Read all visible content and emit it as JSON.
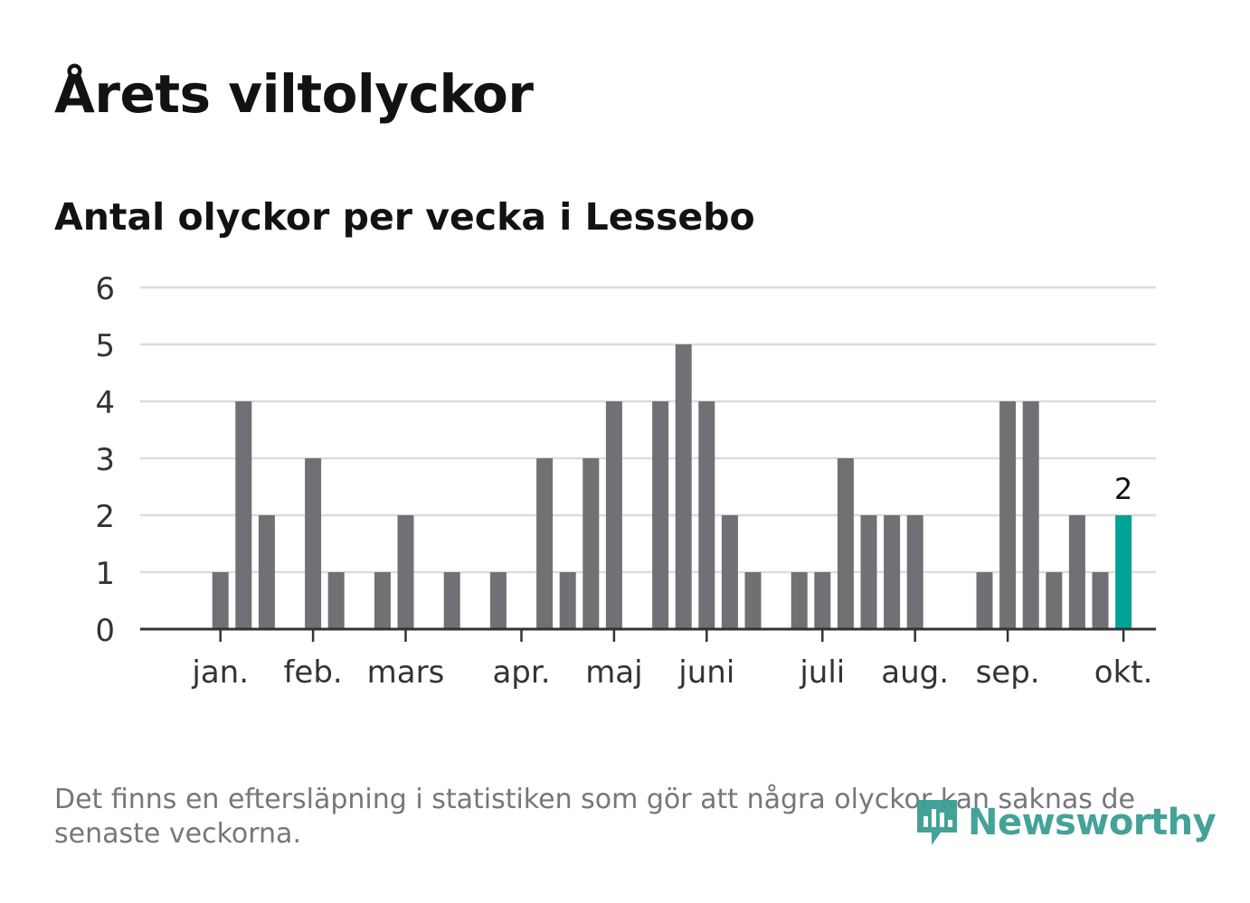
{
  "header": {
    "title": "Årets viltolyckor",
    "subtitle": "Antal olyckor per vecka i Lessebo"
  },
  "footnote": "Det finns en eftersläpning i statistiken som gör att några olyckor kan saknas de senaste veckorna.",
  "logo": {
    "text": "Newsworthy",
    "icon": "newsworthy-chart-icon"
  },
  "colors": {
    "bar": "#707075",
    "highlight": "#00a396",
    "grid": "#dcdcdc",
    "axis": "#333333",
    "text": "#121212"
  },
  "chart_data": {
    "type": "bar",
    "title": "Antal olyckor per vecka i Lessebo",
    "xlabel": "",
    "ylabel": "",
    "ylim": [
      0,
      6
    ],
    "yticks": [
      "0",
      "1",
      "2",
      "3",
      "4",
      "5",
      "6"
    ],
    "weeks": [
      1,
      2,
      3,
      4,
      5,
      6,
      7,
      8,
      9,
      10,
      11,
      12,
      13,
      14,
      15,
      16,
      17,
      18,
      19,
      20,
      21,
      22,
      23,
      24,
      25,
      26,
      27,
      28,
      29,
      30,
      31,
      32,
      33,
      34,
      35,
      36,
      37,
      38,
      39,
      40,
      41,
      42
    ],
    "values": [
      0,
      0,
      1,
      4,
      2,
      0,
      3,
      1,
      0,
      1,
      2,
      0,
      1,
      0,
      1,
      0,
      3,
      1,
      3,
      4,
      0,
      4,
      5,
      4,
      2,
      1,
      0,
      1,
      1,
      3,
      2,
      2,
      2,
      0,
      0,
      1,
      4,
      4,
      1,
      2,
      1,
      2
    ],
    "highlight_index": 41,
    "highlight_label": "2",
    "month_labels": [
      {
        "label": "jan.",
        "week": 3
      },
      {
        "label": "feb.",
        "week": 7
      },
      {
        "label": "mars",
        "week": 11
      },
      {
        "label": "apr.",
        "week": 16
      },
      {
        "label": "maj",
        "week": 20
      },
      {
        "label": "juni",
        "week": 24
      },
      {
        "label": "juli",
        "week": 29
      },
      {
        "label": "aug.",
        "week": 33
      },
      {
        "label": "sep.",
        "week": 37
      },
      {
        "label": "okt.",
        "week": 42
      }
    ],
    "grid": true
  }
}
